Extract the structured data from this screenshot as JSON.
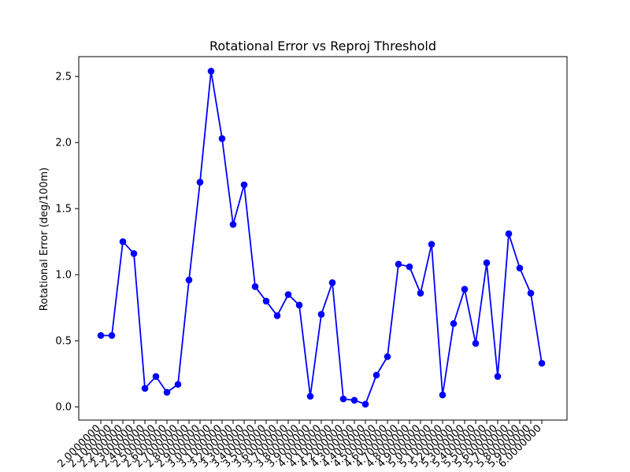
{
  "chart_data": {
    "type": "line",
    "title": "Rotational Error vs Reproj Threshold",
    "xlabel": "",
    "ylabel": "Rotational Error (deg/100m)",
    "ylim": [
      -0.1,
      2.65
    ],
    "yticks": [
      "0.0",
      "0.5",
      "1.0",
      "1.5",
      "2.0",
      "2.5"
    ],
    "x": [
      "2.0000000",
      "2.1000000",
      "2.2000000",
      "2.3000000",
      "2.4000000",
      "2.5000000",
      "2.6000000",
      "2.7000000",
      "2.8000000",
      "2.9000000",
      "3.0000000",
      "3.1000000",
      "3.2000000",
      "3.3000000",
      "3.4000000",
      "3.5000000",
      "3.6000000",
      "3.7000000",
      "3.8000000",
      "3.9000000",
      "4.0000000",
      "4.1000000",
      "4.2000000",
      "4.3000000",
      "4.4000000",
      "4.5000000",
      "4.6000000",
      "4.7000000",
      "4.8000000",
      "4.9000000",
      "5.0000000",
      "5.1000000",
      "5.2000000",
      "5.3000000",
      "5.4000000",
      "5.5000000",
      "5.6000000",
      "5.7000000",
      "5.8000000",
      "5.9000000",
      "6.0000000"
    ],
    "series": [
      {
        "name": "",
        "color": "#0000ff",
        "marker": "circle",
        "values": [
          0.54,
          0.54,
          1.25,
          1.16,
          0.14,
          0.23,
          0.11,
          0.17,
          0.96,
          1.7,
          2.54,
          2.03,
          1.38,
          1.68,
          0.91,
          0.8,
          0.69,
          0.85,
          0.77,
          0.08,
          0.7,
          0.94,
          0.06,
          0.05,
          0.02,
          0.24,
          0.38,
          1.08,
          1.06,
          0.86,
          1.23,
          0.09,
          0.63,
          0.89,
          0.48,
          1.09,
          0.23,
          1.31,
          1.05,
          0.86,
          0.33
        ]
      }
    ],
    "grid": false,
    "legend": "none"
  }
}
